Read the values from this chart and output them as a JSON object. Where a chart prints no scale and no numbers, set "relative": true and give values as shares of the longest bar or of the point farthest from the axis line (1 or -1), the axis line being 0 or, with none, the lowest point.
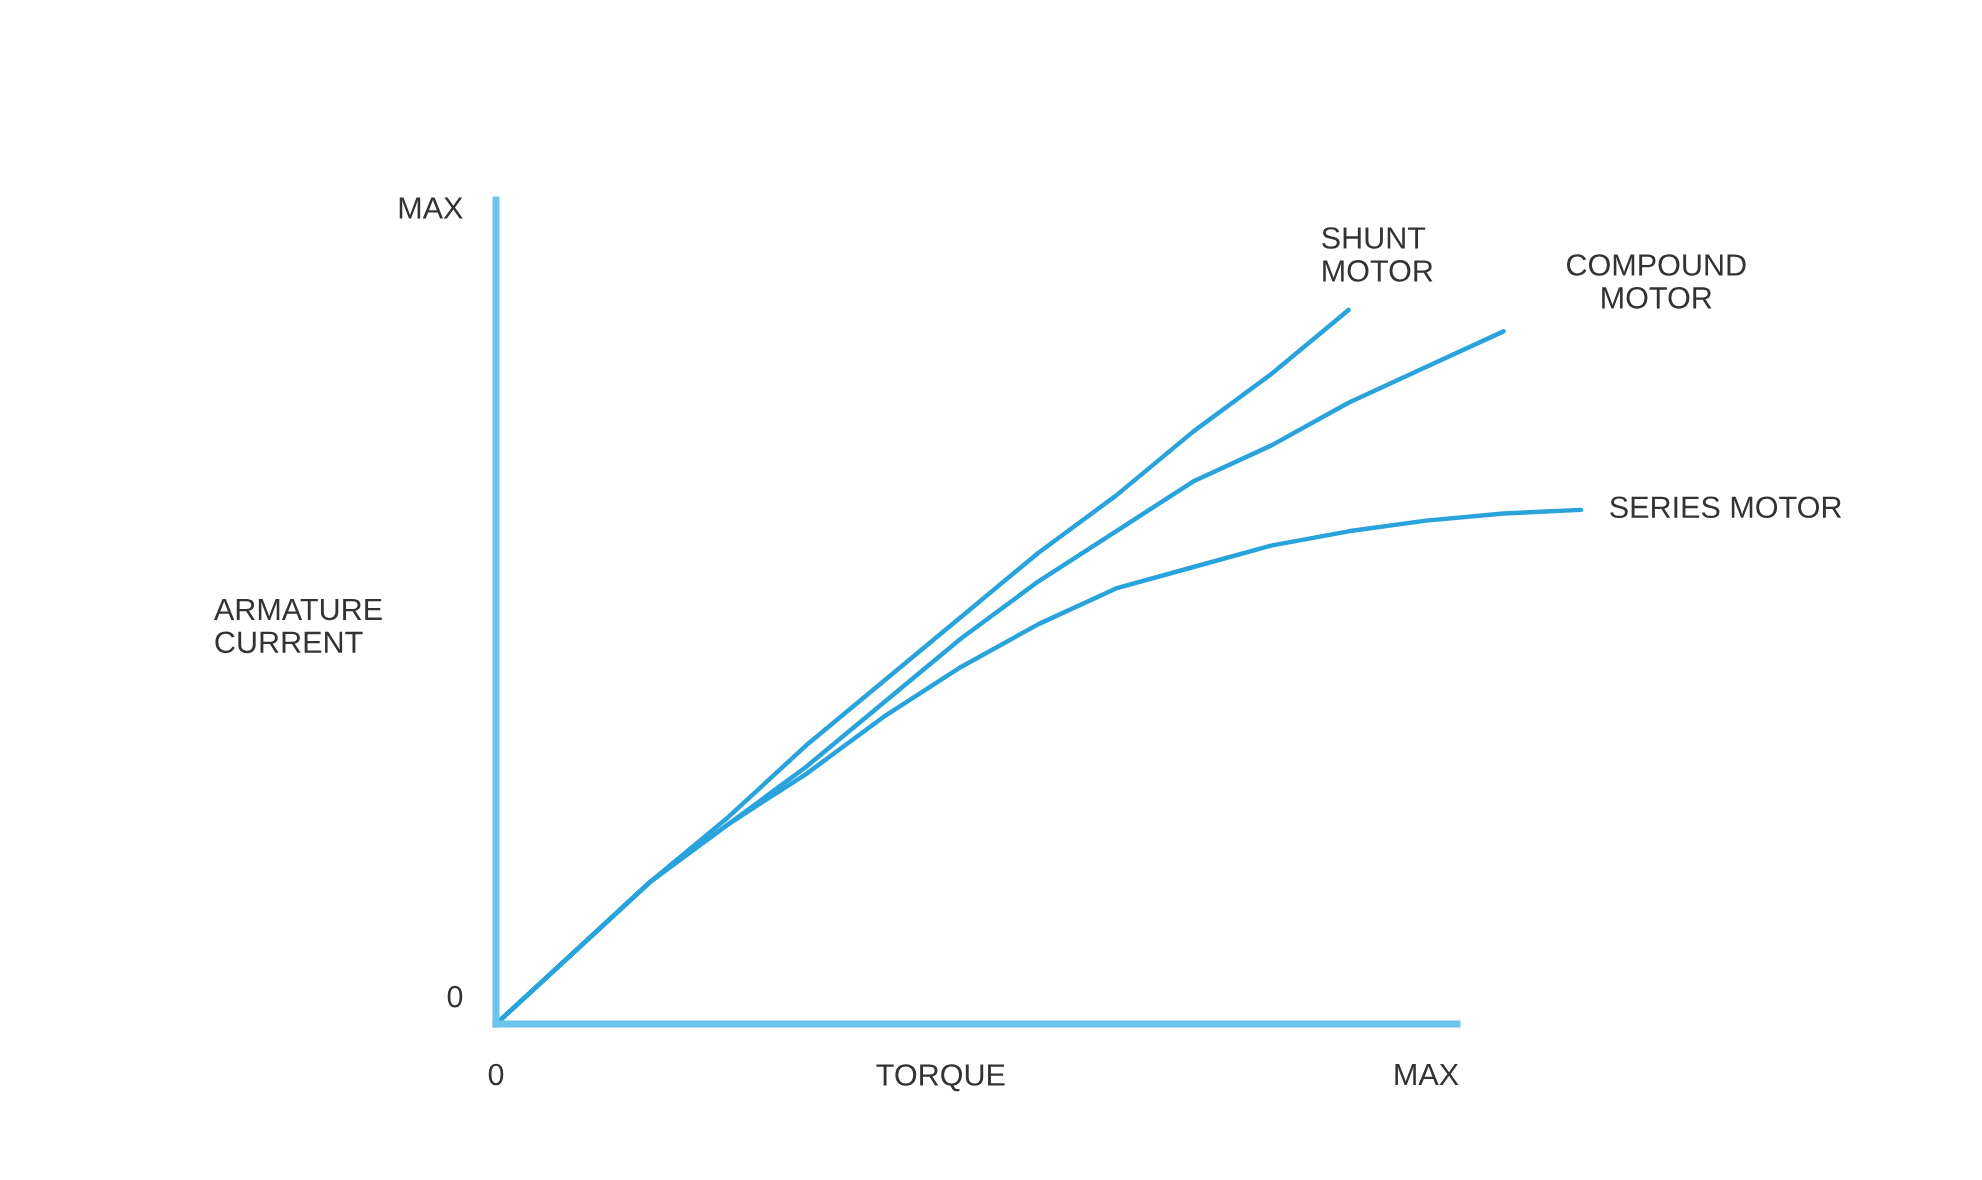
{
  "chart_data": {
    "type": "line",
    "xlabel": "TORQUE",
    "ylabel": "ARMATURE\nCURRENT",
    "relative": true,
    "categories": [
      "0",
      null,
      null,
      null,
      null,
      null,
      null,
      null,
      null,
      null,
      null,
      null,
      "MAX",
      null,
      null
    ],
    "annotations": [
      "MAX",
      "0"
    ],
    "legend": false,
    "marker": "none",
    "line_style": "solid",
    "series": [
      {
        "name": "SHUNT\nMOTOR",
        "color": "#29a3dc",
        "values": [
          0,
          0.1,
          0.2,
          0.29,
          0.39,
          0.48,
          0.57,
          0.66,
          0.74,
          0.83,
          0.91,
          1,
          null,
          null,
          null
        ]
      },
      {
        "name": "COMPOUND\nMOTOR",
        "color": "#29a3dc",
        "values": [
          0,
          0.1,
          0.2,
          0.28,
          0.36,
          0.45,
          0.54,
          0.62,
          0.69,
          0.76,
          0.81,
          0.87,
          0.92,
          0.97,
          null
        ]
      },
      {
        "name": "SERIES MOTOR",
        "color": "#29a3dc",
        "values": [
          0,
          0.1,
          0.2,
          0.28,
          0.35,
          0.43,
          0.5,
          0.56,
          0.61,
          0.64,
          0.67,
          0.69,
          0.705,
          0.715,
          0.72
        ]
      }
    ]
  }
}
